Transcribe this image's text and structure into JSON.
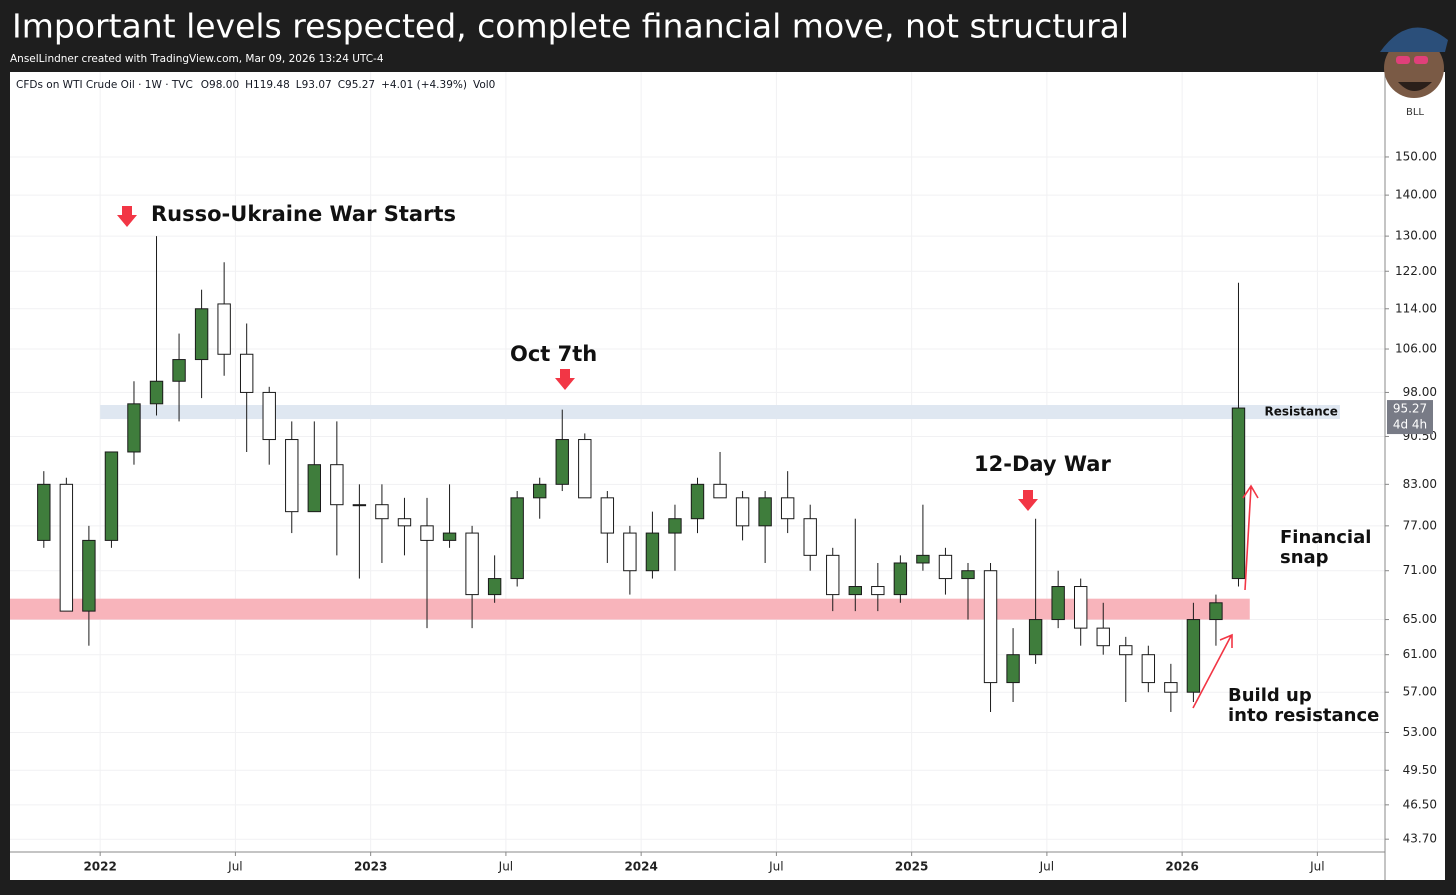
{
  "title": "Important levels respected, complete financial move, not structural",
  "subtitle": "AnselLindner created with TradingView.com, Mar 09, 2026 13:24 UTC-4",
  "avatar_label": "BLL",
  "chart_data": {
    "type": "candlestick",
    "legend_text": [
      "CFDs on WTI Crude Oil · 1W · TVC",
      "O98.00",
      "H119.48",
      "L93.07",
      "C95.27",
      "+4.01 (+4.39%)",
      "Vol0"
    ],
    "x": [
      "2021-10",
      "2021-11",
      "2021-12",
      "2022-01",
      "2022-02",
      "2022-03",
      "2022-04",
      "2022-05",
      "2022-06",
      "2022-07",
      "2022-08",
      "2022-09",
      "2022-10",
      "2022-11",
      "2022-12",
      "2023-01",
      "2023-02",
      "2023-03",
      "2023-04",
      "2023-05",
      "2023-06",
      "2023-07",
      "2023-08",
      "2023-09",
      "2023-10",
      "2023-11",
      "2023-12",
      "2024-01",
      "2024-02",
      "2024-03",
      "2024-04",
      "2024-05",
      "2024-06",
      "2024-07",
      "2024-08",
      "2024-09",
      "2024-10",
      "2024-11",
      "2024-12",
      "2025-01",
      "2025-02",
      "2025-03",
      "2025-04",
      "2025-05",
      "2025-06",
      "2025-07",
      "2025-08",
      "2025-09",
      "2025-10",
      "2025-11",
      "2025-12",
      "2026-01",
      "2026-02",
      "2026-03"
    ],
    "open": [
      75,
      83,
      66,
      75,
      88,
      96,
      100,
      104,
      115,
      105,
      98,
      90,
      79,
      86,
      80,
      80,
      78,
      77,
      75,
      76,
      68,
      70,
      81,
      83,
      90,
      81,
      76,
      71,
      76,
      78,
      83,
      81,
      77,
      81,
      78,
      73,
      68,
      69,
      68,
      72,
      73,
      70,
      71,
      58,
      61,
      65,
      69,
      64,
      62,
      61,
      58,
      57,
      65,
      70
    ],
    "high": [
      85,
      84,
      77,
      88,
      100,
      130,
      109,
      118,
      124,
      111,
      99,
      93,
      93,
      93,
      83,
      83,
      81,
      81,
      83,
      77,
      73,
      82,
      84,
      95,
      91,
      82,
      77,
      79,
      80,
      84,
      88,
      82,
      82,
      85,
      80,
      74,
      78,
      72,
      73,
      80,
      74,
      72,
      72,
      64,
      78,
      71,
      70,
      67,
      63,
      62,
      60,
      67,
      68,
      119.48
    ],
    "low": [
      74,
      66,
      62,
      74,
      86,
      94,
      93,
      97,
      101,
      88,
      86,
      76,
      79,
      73,
      70,
      72,
      73,
      64,
      74,
      64,
      67,
      69,
      78,
      82,
      81,
      72,
      68,
      70,
      71,
      76,
      81,
      75,
      72,
      76,
      71,
      66,
      66,
      66,
      67,
      71,
      68,
      65,
      55,
      56,
      60,
      64,
      62,
      61,
      56,
      57,
      55,
      56,
      62,
      69
    ],
    "close": [
      83,
      66,
      75,
      88,
      96,
      100,
      104,
      114,
      105,
      98,
      90,
      79,
      86,
      80,
      80,
      78,
      77,
      75,
      76,
      68,
      70,
      81,
      83,
      90,
      81,
      76,
      71,
      76,
      78,
      83,
      81,
      77,
      81,
      78,
      73,
      68,
      69,
      68,
      72,
      73,
      70,
      71,
      58,
      61,
      65,
      69,
      64,
      62,
      61,
      58,
      57,
      65,
      67,
      95.27
    ],
    "up_color": "#3f7d3c",
    "down_color": "#ffffff",
    "xlim": [
      "2021-09",
      "2026-10"
    ],
    "xticks": [
      {
        "value": "2022-01",
        "label": "2022"
      },
      {
        "value": "2022-07",
        "label": "Jul"
      },
      {
        "value": "2023-01",
        "label": "2023"
      },
      {
        "value": "2023-07",
        "label": "Jul"
      },
      {
        "value": "2024-01",
        "label": "2024"
      },
      {
        "value": "2024-07",
        "label": "Jul"
      },
      {
        "value": "2025-01",
        "label": "2025"
      },
      {
        "value": "2025-07",
        "label": "Jul"
      },
      {
        "value": "2026-01",
        "label": "2026"
      },
      {
        "value": "2026-07",
        "label": "Jul"
      }
    ],
    "ylim": [
      42.7,
      174.9
    ],
    "log_scale": true,
    "yticks": [
      {
        "value": 43.7,
        "label": "43.70"
      },
      {
        "value": 46.5,
        "label": "46.50"
      },
      {
        "value": 49.5,
        "label": "49.50"
      },
      {
        "value": 53,
        "label": "53.00"
      },
      {
        "value": 57,
        "label": "57.00"
      },
      {
        "value": 61,
        "label": "61.00"
      },
      {
        "value": 65,
        "label": "65.00"
      },
      {
        "value": 71,
        "label": "71.00"
      },
      {
        "value": 77,
        "label": "77.00"
      },
      {
        "value": 83,
        "label": "83.00"
      },
      {
        "value": 90.5,
        "label": "90.50"
      },
      {
        "value": 98,
        "label": "98.00"
      },
      {
        "value": 106,
        "label": "106.00"
      },
      {
        "value": 114,
        "label": "114.00"
      },
      {
        "value": 122,
        "label": "122.00"
      },
      {
        "value": 130,
        "label": "130.00"
      },
      {
        "value": 140,
        "label": "140.00"
      },
      {
        "value": 150,
        "label": "150.00"
      }
    ],
    "grid": true,
    "zones": [
      {
        "name": "Resistance",
        "low": 93.4,
        "high": 95.8,
        "color": "#dfe7f1",
        "start": "2022-01",
        "end": "2026-08"
      },
      {
        "low": 65,
        "high": 67.5,
        "color": "#f8b4bb",
        "start": "2021-09",
        "end": "2026-04"
      }
    ],
    "countdown": "4d 4h",
    "annotations": [
      "Russo-Ukraine War Starts",
      "Oct 7th",
      "12-Day War",
      "Financial",
      "snap",
      "Build up",
      "into resistance"
    ]
  }
}
